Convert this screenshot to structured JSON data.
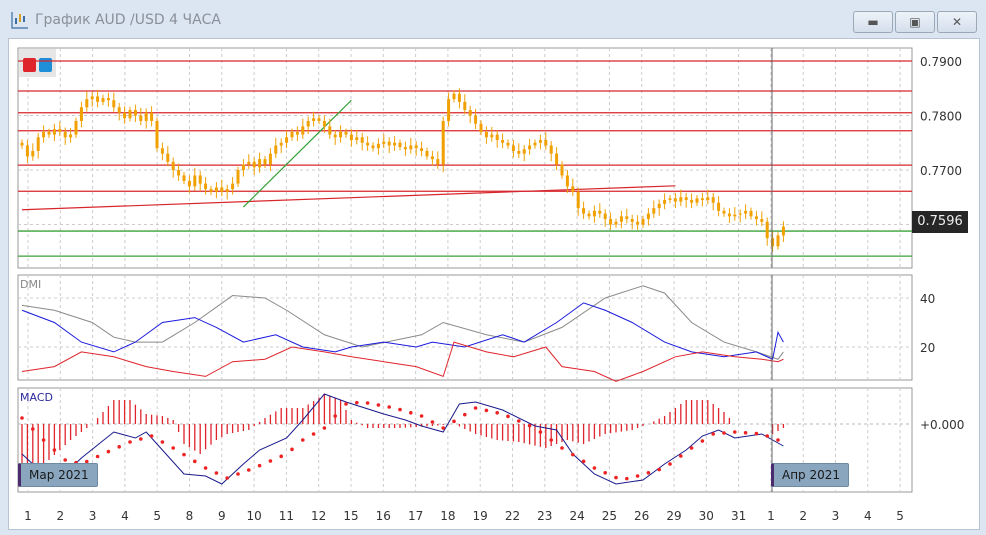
{
  "window": {
    "title": "График AUD /USD  4 ЧАСА",
    "minimize_icon": "minimize-icon",
    "maximize_icon": "restore-icon",
    "close_icon": "close-icon"
  },
  "legend_colors": [
    "#e0242c",
    "#1e8ed8"
  ],
  "price_panel": {
    "axis_labels": [
      {
        "value": 0.79,
        "text": "0.7900"
      },
      {
        "value": 0.78,
        "text": "0.7800"
      },
      {
        "value": 0.77,
        "text": "0.7700"
      }
    ],
    "current_price": "0.7596",
    "candle_color": "#f0a000",
    "hlines": [
      {
        "price": 0.79,
        "color": "#d8262c"
      },
      {
        "price": 0.7845,
        "color": "#d8262c"
      },
      {
        "price": 0.7805,
        "color": "#d8262c"
      },
      {
        "price": 0.7772,
        "color": "#d8262c"
      },
      {
        "price": 0.7709,
        "color": "#d8262c"
      },
      {
        "price": 0.7661,
        "color": "#d8262c"
      },
      {
        "price": 0.7588,
        "color": "#3aa03a"
      },
      {
        "price": 0.7542,
        "color": "#3aa03a"
      }
    ],
    "trendlines": [
      {
        "from": [
          0,
          0.7627
        ],
        "to": [
          121,
          0.7671
        ],
        "color": "#d8262c"
      },
      {
        "from": [
          41,
          0.7632
        ],
        "to": [
          61,
          0.7828
        ],
        "color": "#2fa02f"
      }
    ],
    "closes": [
      0.7745,
      0.7725,
      0.7735,
      0.776,
      0.777,
      0.7765,
      0.7775,
      0.777,
      0.776,
      0.7765,
      0.779,
      0.7815,
      0.783,
      0.7835,
      0.7825,
      0.7832,
      0.7828,
      0.7815,
      0.7805,
      0.7795,
      0.781,
      0.78,
      0.779,
      0.7805,
      0.779,
      0.774,
      0.773,
      0.7715,
      0.77,
      0.769,
      0.768,
      0.767,
      0.769,
      0.7675,
      0.7665,
      0.766,
      0.7668,
      0.766,
      0.7665,
      0.7675,
      0.77,
      0.771,
      0.7715,
      0.7705,
      0.772,
      0.771,
      0.773,
      0.7745,
      0.775,
      0.776,
      0.777,
      0.7765,
      0.778,
      0.779,
      0.7795,
      0.779,
      0.778,
      0.7765,
      0.776,
      0.777,
      0.7765,
      0.7755,
      0.776,
      0.775,
      0.7745,
      0.774,
      0.7748,
      0.7752,
      0.7745,
      0.775,
      0.7742,
      0.7738,
      0.7745,
      0.774,
      0.7735,
      0.7725,
      0.772,
      0.771,
      0.779,
      0.783,
      0.784,
      0.7825,
      0.781,
      0.78,
      0.7785,
      0.777,
      0.776,
      0.7765,
      0.7755,
      0.775,
      0.7745,
      0.7735,
      0.773,
      0.7738,
      0.7745,
      0.775,
      0.7755,
      0.7745,
      0.773,
      0.771,
      0.769,
      0.767,
      0.766,
      0.763,
      0.762,
      0.7615,
      0.7625,
      0.762,
      0.761,
      0.76,
      0.7605,
      0.7615,
      0.761,
      0.7605,
      0.76,
      0.761,
      0.762,
      0.763,
      0.7638,
      0.7645,
      0.7648,
      0.7642,
      0.765,
      0.7645,
      0.764,
      0.7648,
      0.7645,
      0.765,
      0.764,
      0.7625,
      0.762,
      0.7615,
      0.7618,
      0.762,
      0.7625,
      0.7615,
      0.761,
      0.7605,
      0.7575,
      0.756,
      0.758,
      0.7596
    ]
  },
  "dmi": {
    "label": "DMI",
    "axis_labels": [
      {
        "value": 40,
        "text": "40"
      },
      {
        "value": 20,
        "text": "20"
      }
    ],
    "adx": {
      "color": "#8a8a8a",
      "points": [
        [
          0,
          37
        ],
        [
          6,
          35
        ],
        [
          13,
          30
        ],
        [
          17,
          24
        ],
        [
          21,
          22
        ],
        [
          26,
          22
        ],
        [
          32,
          30
        ],
        [
          39,
          41
        ],
        [
          45,
          40
        ],
        [
          49,
          35
        ],
        [
          56,
          25
        ],
        [
          63,
          20
        ],
        [
          74,
          25
        ],
        [
          78,
          30
        ],
        [
          86,
          25
        ],
        [
          93,
          22
        ],
        [
          100,
          28
        ],
        [
          108,
          40
        ],
        [
          115,
          45
        ],
        [
          119,
          42
        ],
        [
          124,
          30
        ],
        [
          130,
          22
        ],
        [
          136,
          18
        ],
        [
          140,
          15
        ],
        [
          141,
          18
        ]
      ]
    },
    "plus_di": {
      "color": "#1a1adc",
      "points": [
        [
          0,
          35
        ],
        [
          6,
          30
        ],
        [
          11,
          22
        ],
        [
          17,
          18
        ],
        [
          21,
          22
        ],
        [
          26,
          30
        ],
        [
          32,
          32
        ],
        [
          36,
          28
        ],
        [
          41,
          22
        ],
        [
          47,
          25
        ],
        [
          52,
          20
        ],
        [
          58,
          18
        ],
        [
          61,
          20
        ],
        [
          67,
          22
        ],
        [
          73,
          20
        ],
        [
          76,
          22
        ],
        [
          82,
          20
        ],
        [
          89,
          25
        ],
        [
          93,
          22
        ],
        [
          99,
          30
        ],
        [
          104,
          38
        ],
        [
          108,
          35
        ],
        [
          113,
          30
        ],
        [
          119,
          22
        ],
        [
          124,
          18
        ],
        [
          130,
          16
        ],
        [
          136,
          18
        ],
        [
          139,
          15
        ],
        [
          140,
          26
        ],
        [
          141,
          22
        ]
      ]
    },
    "minus_di": {
      "color": "#e0242c",
      "points": [
        [
          0,
          10
        ],
        [
          6,
          12
        ],
        [
          11,
          18
        ],
        [
          17,
          16
        ],
        [
          23,
          12
        ],
        [
          28,
          10
        ],
        [
          34,
          8
        ],
        [
          39,
          14
        ],
        [
          45,
          15
        ],
        [
          50,
          20
        ],
        [
          56,
          18
        ],
        [
          61,
          16
        ],
        [
          67,
          14
        ],
        [
          73,
          12
        ],
        [
          78,
          8
        ],
        [
          80,
          22
        ],
        [
          86,
          18
        ],
        [
          91,
          16
        ],
        [
          97,
          20
        ],
        [
          100,
          12
        ],
        [
          106,
          10
        ],
        [
          110,
          6
        ],
        [
          115,
          10
        ],
        [
          121,
          16
        ],
        [
          126,
          18
        ],
        [
          132,
          16
        ],
        [
          137,
          15
        ],
        [
          140,
          14
        ],
        [
          141,
          15
        ]
      ]
    }
  },
  "macd": {
    "label": "MACD",
    "axis_labels": [
      {
        "value": 0,
        "text": "+0.000"
      }
    ],
    "macd_line": {
      "color": "#1a1a8c",
      "points": [
        [
          0,
          -0.0015
        ],
        [
          6,
          -0.003
        ],
        [
          11,
          -0.0017
        ],
        [
          17,
          -0.0004
        ],
        [
          21,
          -0.0007
        ],
        [
          23,
          -0.0004
        ],
        [
          26,
          -0.0013
        ],
        [
          30,
          -0.0025
        ],
        [
          34,
          -0.0026
        ],
        [
          37,
          -0.003
        ],
        [
          41,
          -0.002
        ],
        [
          44,
          -0.0013
        ],
        [
          49,
          -0.0007
        ],
        [
          52,
          0.0002
        ],
        [
          56,
          0.0015
        ],
        [
          60,
          0.0011
        ],
        [
          67,
          0.0005
        ],
        [
          71,
          0.0002
        ],
        [
          74,
          -0.0001
        ],
        [
          78,
          -0.0004
        ],
        [
          81,
          0.001
        ],
        [
          84,
          0.0011
        ],
        [
          89,
          0.0007
        ],
        [
          95,
          -0.0001
        ],
        [
          99,
          -0.0003
        ],
        [
          102,
          -0.0015
        ],
        [
          106,
          -0.0025
        ],
        [
          110,
          -0.003
        ],
        [
          115,
          -0.0028
        ],
        [
          119,
          -0.002
        ],
        [
          123,
          -0.0013
        ],
        [
          126,
          -0.0006
        ],
        [
          129,
          -0.0003
        ],
        [
          132,
          -0.0007
        ],
        [
          137,
          -0.0005
        ],
        [
          139,
          -0.0008
        ],
        [
          141,
          -0.0011
        ]
      ]
    },
    "signal_line": {
      "color": "#ee2222",
      "points": [
        [
          0,
          0.0003
        ],
        [
          4,
          -0.0008
        ],
        [
          8,
          -0.0018
        ],
        [
          11,
          -0.002
        ],
        [
          15,
          -0.0015
        ],
        [
          20,
          -0.0009
        ],
        [
          24,
          -0.0006
        ],
        [
          28,
          -0.0012
        ],
        [
          34,
          -0.0022
        ],
        [
          38,
          -0.0027
        ],
        [
          43,
          -0.0022
        ],
        [
          49,
          -0.0015
        ],
        [
          52,
          -0.0008
        ],
        [
          56,
          -0.0002
        ],
        [
          60,
          0.001
        ],
        [
          63,
          0.0011
        ],
        [
          69,
          0.0008
        ],
        [
          74,
          0.0004
        ],
        [
          78,
          -0.0002
        ],
        [
          84,
          0.0008
        ],
        [
          89,
          0.0005
        ],
        [
          95,
          -0.0002
        ],
        [
          100,
          -0.0012
        ],
        [
          106,
          -0.0022
        ],
        [
          111,
          -0.0028
        ],
        [
          114,
          -0.0026
        ],
        [
          119,
          -0.0022
        ],
        [
          124,
          -0.0012
        ],
        [
          128,
          -0.0005
        ],
        [
          132,
          -0.0004
        ],
        [
          137,
          -0.0005
        ],
        [
          140,
          -0.0008
        ],
        [
          141,
          -0.0009
        ]
      ]
    },
    "histogram": {
      "color": "#e0242c",
      "points": [
        [
          0,
          -0.003
        ],
        [
          5,
          -0.0018
        ],
        [
          9,
          -0.0008
        ],
        [
          13,
          0.0
        ],
        [
          15,
          0.0006
        ],
        [
          17,
          0.0012
        ],
        [
          20,
          0.0012
        ],
        [
          23,
          0.0005
        ],
        [
          26,
          0.0004
        ],
        [
          28,
          0.0002
        ],
        [
          30,
          -0.001
        ],
        [
          33,
          -0.0015
        ],
        [
          36,
          -0.0008
        ],
        [
          38,
          -0.0005
        ],
        [
          42,
          -0.0003
        ],
        [
          45,
          0.0003
        ],
        [
          48,
          0.0008
        ],
        [
          52,
          0.0008
        ],
        [
          56,
          0.0015
        ],
        [
          59,
          0.0012
        ],
        [
          61,
          0.0002
        ],
        [
          64,
          -0.0002
        ],
        [
          70,
          -0.0002
        ],
        [
          76,
          -0.0001
        ],
        [
          80,
          0.0
        ],
        [
          84,
          -0.0005
        ],
        [
          88,
          -0.0008
        ],
        [
          92,
          -0.0009
        ],
        [
          97,
          -0.0012
        ],
        [
          101,
          -0.0008
        ],
        [
          104,
          -0.001
        ],
        [
          108,
          -0.0005
        ],
        [
          113,
          -0.0003
        ],
        [
          116,
          0.0
        ],
        [
          119,
          0.0004
        ],
        [
          123,
          0.0012
        ],
        [
          127,
          0.0012
        ],
        [
          130,
          0.0006
        ],
        [
          132,
          0.0
        ],
        [
          138,
          0.0
        ],
        [
          139,
          -0.0005
        ],
        [
          141,
          -0.0002
        ]
      ]
    }
  },
  "x_axis": {
    "labels": [
      "1",
      "2",
      "3",
      "4",
      "5",
      "8",
      "9",
      "10",
      "11",
      "12",
      "15",
      "16",
      "17",
      "18",
      "19",
      "22",
      "23",
      "24",
      "25",
      "26",
      "29",
      "30",
      "31",
      "1",
      "2",
      "3",
      "4",
      "5"
    ]
  },
  "period_badges": {
    "march": "Мар 2021",
    "april": "Апр 2021"
  }
}
